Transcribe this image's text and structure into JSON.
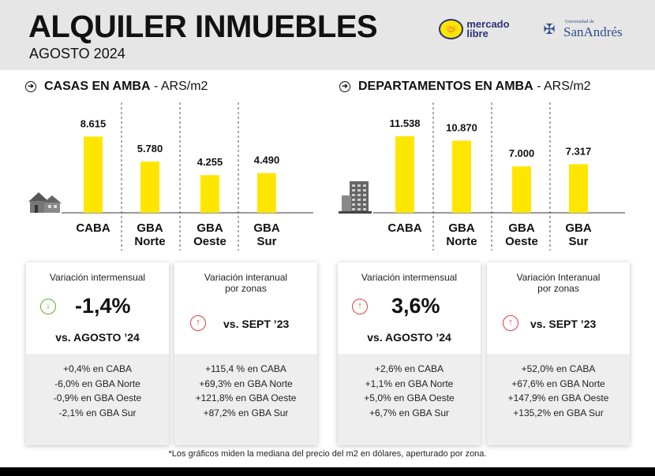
{
  "header": {
    "title": "ALQUILER INMUEBLES",
    "subtitle": "AGOSTO 2024",
    "logo_mercadolibre": "mercado libre",
    "logo_sanandres_small": "Universidad de",
    "logo_sanandres_big": "SanAndrés"
  },
  "colors": {
    "bar": "#ffe600",
    "down": "#6aaa2a",
    "up": "#e04040",
    "header_bg": "#e6e6e6"
  },
  "chart_data": [
    {
      "type": "bar",
      "title": "CASAS EN AMBA",
      "unit": "- ARS/m2",
      "categories": [
        "CABA",
        "GBA Norte",
        "GBA Oeste",
        "GBA Sur"
      ],
      "category_lines": [
        [
          "CABA"
        ],
        [
          "GBA",
          "Norte"
        ],
        [
          "GBA",
          "Oeste"
        ],
        [
          "GBA",
          "Sur"
        ]
      ],
      "values": [
        8615,
        5780,
        4255,
        4490
      ],
      "value_labels": [
        "8.615",
        "5.780",
        "4.255",
        "4.490"
      ],
      "ylim": [
        0,
        9000
      ],
      "grid": false,
      "icon": "house-icon"
    },
    {
      "type": "bar",
      "title": "DEPARTAMENTOS EN AMBA",
      "unit": "- ARS/m2",
      "categories": [
        "CABA",
        "GBA Norte",
        "GBA Oeste",
        "GBA Sur"
      ],
      "category_lines": [
        [
          "CABA"
        ],
        [
          "GBA",
          "Norte"
        ],
        [
          "GBA",
          "Oeste"
        ],
        [
          "GBA",
          "Sur"
        ]
      ],
      "values": [
        11538,
        10870,
        7000,
        7317
      ],
      "value_labels": [
        "11.538",
        "10.870",
        "7.000",
        "7.317"
      ],
      "ylim": [
        0,
        12000
      ],
      "grid": false,
      "icon": "building-icon"
    }
  ],
  "cards": [
    {
      "caption": "Variación intermensual",
      "value": "-1,4%",
      "vs": "vs. AGOSTO ’24",
      "direction": "down",
      "lines": [
        "+0,4% en CABA",
        "-6,0% en GBA Norte",
        "-0,9% en GBA Oeste",
        "-2,1% en GBA Sur"
      ]
    },
    {
      "caption": "Variación interanual",
      "caption2": "por zonas",
      "vs": "vs. SEPT ’23",
      "direction": "up",
      "lines": [
        "+115,4 % en CABA",
        "+69,3% en GBA Norte",
        "+121,8% en GBA Oeste",
        "+87,2% en GBA Sur"
      ]
    },
    {
      "caption": "Variación intermensual",
      "value": "3,6%",
      "vs": "vs. AGOSTO ’24",
      "direction": "up",
      "lines": [
        "+2,6% en CABA",
        "+1,1% en GBA Norte",
        "+5,0% en GBA Oeste",
        "+6,7% en GBA Sur"
      ]
    },
    {
      "caption": "Variación Interanual",
      "caption2": "por zonas",
      "vs": "vs. SEPT ’23",
      "direction": "up",
      "lines": [
        "+52,0% en CABA",
        "+67,6% en GBA Norte",
        "+147,9% en GBA Oeste",
        "+135,2% en GBA Sur"
      ]
    }
  ],
  "footnote": "*Los gráficos miden la mediana del precio del m2 en dólares, aperturado por zona."
}
